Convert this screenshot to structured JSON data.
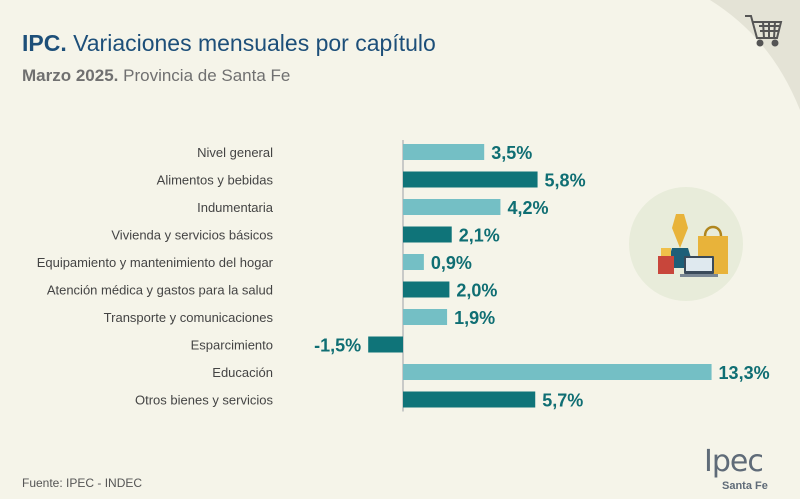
{
  "header": {
    "title_bold": "IPC.",
    "title_rest": " Variaciones mensuales por capítulo",
    "subtitle_bold": "Marzo 2025.",
    "subtitle_rest": " Provincia de Santa Fe"
  },
  "footer": {
    "source": "Fuente: IPEC - INDEC"
  },
  "logo": {
    "main": "Ipec",
    "sub": "Santa Fe"
  },
  "colors": {
    "light_bar": "#74bfc5",
    "dark_bar": "#0f7479",
    "label_value": "#0f6e73",
    "title": "#1d4f79",
    "background": "#f5f4e9"
  },
  "chart_data": {
    "type": "bar",
    "orientation": "horizontal",
    "categories": [
      "Nivel general",
      "Alimentos y bebidas",
      "Indumentaria",
      "Vivienda y servicios básicos",
      "Equipamiento y mantenimiento del hogar",
      "Atención médica y gastos para la salud",
      "Transporte y comunicaciones",
      "Esparcimiento",
      "Educación",
      "Otros bienes y servicios"
    ],
    "values": [
      3.5,
      5.8,
      4.2,
      2.1,
      0.9,
      2.0,
      1.9,
      -1.5,
      13.3,
      5.7
    ],
    "value_labels": [
      "3,5%",
      "5,8%",
      "4,2%",
      "2,1%",
      "0,9%",
      "2,0%",
      "1,9%",
      "-1,5%",
      "13,3%",
      "5,7%"
    ],
    "bar_shades": [
      "light",
      "dark",
      "light",
      "dark",
      "light",
      "dark",
      "light",
      "dark",
      "light",
      "dark"
    ],
    "xlim": [
      -1.5,
      13.3
    ],
    "grid": false,
    "legend": false
  }
}
